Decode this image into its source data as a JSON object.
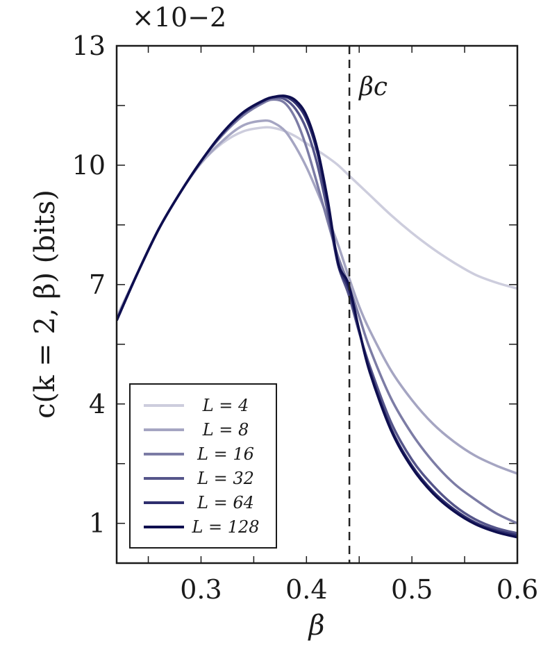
{
  "chart_data": {
    "type": "line",
    "xlabel": "β",
    "ylabel": "c(k = 2, β) (bits)",
    "y_multiplier": "×10−2",
    "xlim": [
      0.22,
      0.6
    ],
    "ylim": [
      0,
      13
    ],
    "xticks": [
      0.3,
      0.4,
      0.5,
      0.6
    ],
    "xtick_labels": [
      "0.3",
      "0.4",
      "0.5",
      "0.6"
    ],
    "yticks": [
      1,
      4,
      7,
      10,
      13
    ],
    "ytick_labels": [
      "1",
      "4",
      "7",
      "10",
      "13"
    ],
    "legend_position": "bottom-left",
    "vline": {
      "x": 0.4407,
      "label": "βc",
      "style": "dashed"
    },
    "x": [
      0.22,
      0.24,
      0.26,
      0.28,
      0.3,
      0.32,
      0.34,
      0.36,
      0.37,
      0.38,
      0.39,
      0.4,
      0.41,
      0.42,
      0.43,
      0.44,
      0.45,
      0.46,
      0.48,
      0.5,
      0.52,
      0.54,
      0.56,
      0.58,
      0.6
    ],
    "series": [
      {
        "name": "L = 4",
        "color": "#cdcddd",
        "values": [
          6.2,
          7.3,
          8.4,
          9.3,
          10.05,
          10.55,
          10.85,
          10.95,
          10.93,
          10.85,
          10.72,
          10.55,
          10.38,
          10.2,
          10.0,
          9.75,
          9.5,
          9.25,
          8.75,
          8.3,
          7.9,
          7.55,
          7.25,
          7.05,
          6.9
        ]
      },
      {
        "name": "L = 8",
        "color": "#a5a5c2",
        "values": [
          6.15,
          7.3,
          8.4,
          9.3,
          10.05,
          10.6,
          11.0,
          11.12,
          11.05,
          10.85,
          10.45,
          9.95,
          9.35,
          8.7,
          8.0,
          7.2,
          6.45,
          5.85,
          4.85,
          4.1,
          3.5,
          3.05,
          2.7,
          2.45,
          2.25
        ]
      },
      {
        "name": "L = 16",
        "color": "#7c7ca5",
        "values": [
          6.1,
          7.3,
          8.4,
          9.3,
          10.1,
          10.75,
          11.25,
          11.58,
          11.65,
          11.55,
          11.15,
          10.45,
          9.55,
          8.6,
          7.7,
          7.0,
          6.2,
          5.4,
          4.15,
          3.25,
          2.55,
          2.0,
          1.6,
          1.25,
          1.0
        ]
      },
      {
        "name": "L = 32",
        "color": "#55558a",
        "values": [
          6.1,
          7.3,
          8.4,
          9.3,
          10.1,
          10.78,
          11.3,
          11.62,
          11.7,
          11.65,
          11.4,
          10.9,
          10.05,
          8.85,
          7.5,
          6.75,
          5.8,
          4.95,
          3.55,
          2.6,
          1.95,
          1.45,
          1.1,
          0.88,
          0.75
        ]
      },
      {
        "name": "L = 64",
        "color": "#2f2f6e",
        "values": [
          6.1,
          7.3,
          8.4,
          9.3,
          10.1,
          10.8,
          11.32,
          11.63,
          11.72,
          11.72,
          11.55,
          11.15,
          10.35,
          9.05,
          7.5,
          6.9,
          5.85,
          4.85,
          3.4,
          2.45,
          1.8,
          1.35,
          1.02,
          0.82,
          0.7
        ]
      },
      {
        "name": "L = 128",
        "color": "#0e0e4f",
        "values": [
          6.1,
          7.3,
          8.4,
          9.3,
          10.1,
          10.8,
          11.33,
          11.64,
          11.72,
          11.74,
          11.62,
          11.25,
          10.45,
          9.15,
          7.55,
          7.0,
          5.85,
          4.8,
          3.35,
          2.4,
          1.75,
          1.3,
          0.98,
          0.78,
          0.65
        ]
      }
    ]
  }
}
